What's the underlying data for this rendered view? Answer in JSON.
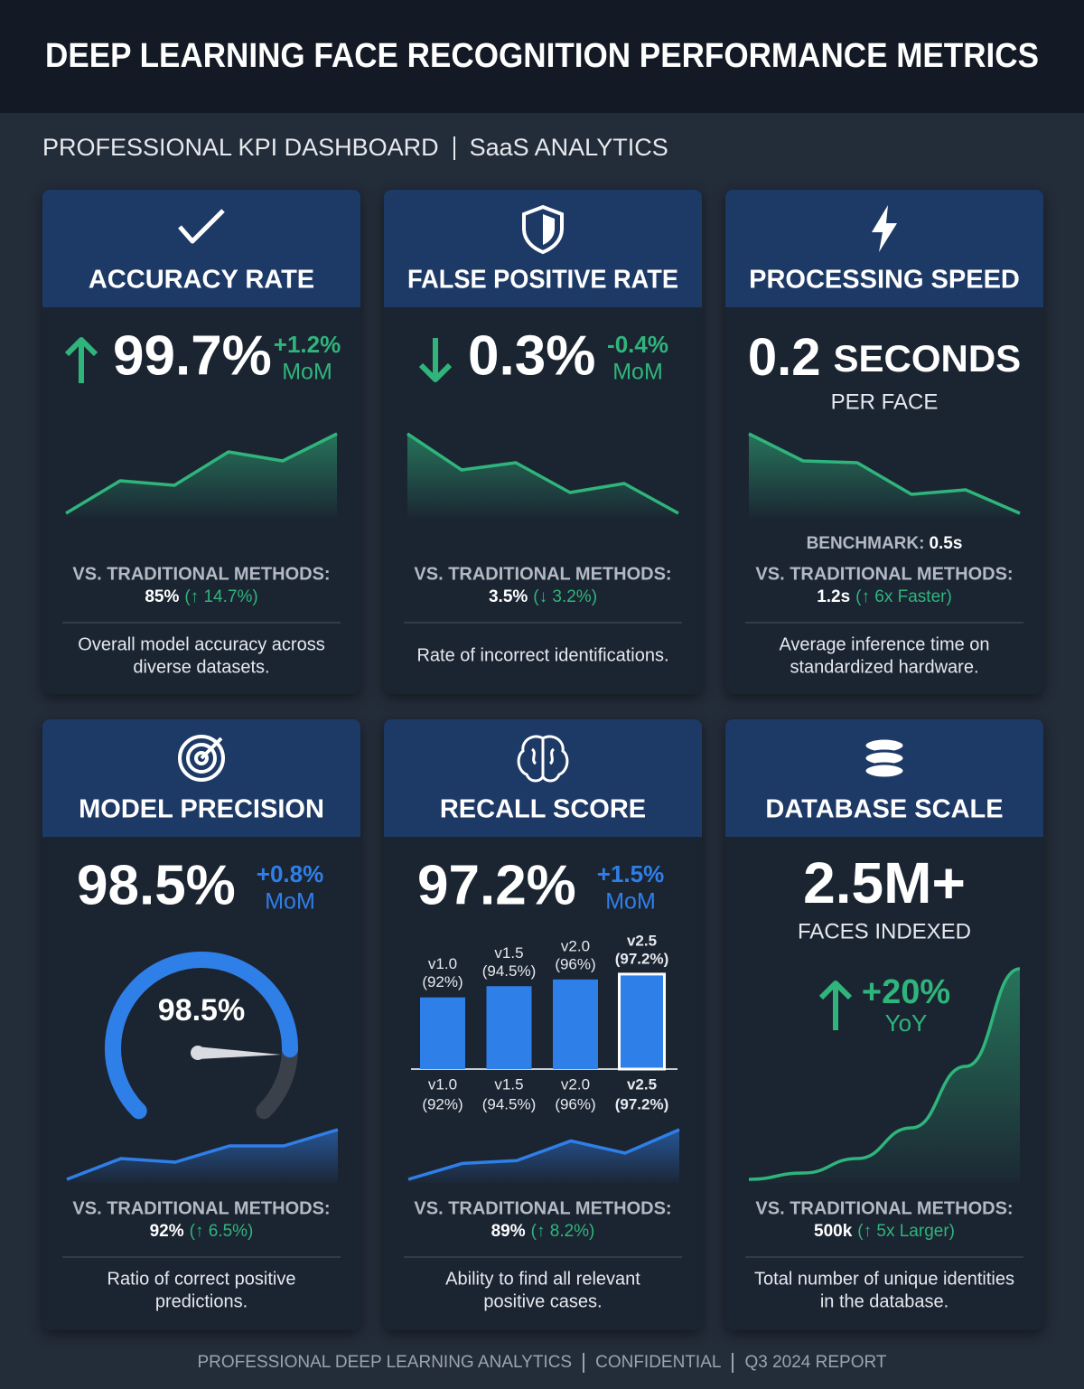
{
  "header": {
    "title": "DEEP LEARNING FACE RECOGNITION PERFORMANCE METRICS"
  },
  "subtitle": [
    "PROFESSIONAL KPI DASHBOARD",
    "SaaS ANALYTICS"
  ],
  "cards": [
    {
      "title": "ACCURACY RATE",
      "value": "99.7%",
      "change": "+1.2%",
      "period": "MoM",
      "trend": [
        1,
        4.6,
        4.1,
        7.8,
        6.8,
        9.8
      ],
      "comparison": {
        "label": "VS. TRADITIONAL METHODS:",
        "value": "85%",
        "change": "(↑ 14.7%)"
      },
      "description": [
        "Overall model accuracy across",
        "diverse datasets."
      ]
    },
    {
      "title": "FALSE POSITIVE RATE",
      "value": "0.3%",
      "change": "-0.4%",
      "period": "MoM",
      "trend": [
        9.8,
        5.8,
        6.6,
        3.3,
        4.3,
        1
      ],
      "comparison": {
        "label": "VS. TRADITIONAL METHODS:",
        "value": "3.5%",
        "change": "(↓ 3.2%)"
      },
      "description": [
        "Rate of incorrect identifications."
      ]
    },
    {
      "title": "PROCESSING SPEED",
      "value": "0.2",
      "unit": "SECONDS",
      "sub": "PER FACE",
      "trend": [
        9.8,
        6.8,
        6.6,
        3.1,
        3.6,
        1
      ],
      "benchmark": {
        "label": "BENCHMARK:",
        "value": "0.5s"
      },
      "comparison": {
        "label": "VS. TRADITIONAL METHODS:",
        "value": "1.2s",
        "change": "(↑ 6x Faster)"
      },
      "description": [
        "Average inference time on",
        "standardized hardware."
      ]
    },
    {
      "title": "MODEL PRECISION",
      "value": "98.5%",
      "change": "+0.8%",
      "period": "MoM",
      "gauge": {
        "label": "98.5%",
        "value": 98.5,
        "range": [
          40,
          110
        ]
      },
      "trend": [
        1,
        3.3,
        2.9,
        4.7,
        4.7,
        6.5
      ],
      "comparison": {
        "label": "VS. TRADITIONAL METHODS:",
        "value": "92%",
        "change": "(↑ 6.5%)"
      },
      "description": [
        "Ratio of correct positive",
        "predictions."
      ]
    },
    {
      "title": "RECALL SCORE",
      "value": "97.2%",
      "change": "+1.5%",
      "period": "MoM",
      "bars": {
        "categories": [
          "v1.0",
          "v1.5",
          "v2.0",
          "v2.5"
        ],
        "values": [
          92,
          94.5,
          96,
          97.2
        ],
        "value_labels": [
          "(92%)",
          "(94.5%)",
          "(96%)",
          "(97.2%)"
        ],
        "ylim": [
          76,
          100
        ]
      },
      "trend": [
        1,
        2.7,
        3,
        5.1,
        3.8,
        6.3
      ],
      "comparison": {
        "label": "VS. TRADITIONAL METHODS:",
        "value": "89%",
        "change": "(↑ 8.2%)"
      },
      "description": [
        "Ability to find all relevant",
        "positive cases."
      ]
    },
    {
      "title": "DATABASE SCALE",
      "value": "2.5M+",
      "sub": "FACES INDEXED",
      "change": "+20%",
      "period": "YoY",
      "trend": [
        1,
        1.7,
        3.3,
        6.7,
        13.5,
        24.3
      ],
      "comparison": {
        "label": "VS. TRADITIONAL METHODS:",
        "value": "500k",
        "change": "(↑ 5x Larger)"
      },
      "description": [
        "Total number of unique identities",
        "in the database."
      ]
    }
  ],
  "footer": [
    "PROFESSIONAL DEEP LEARNING ANALYTICS",
    "CONFIDENTIAL",
    "Q3 2024 REPORT"
  ]
}
